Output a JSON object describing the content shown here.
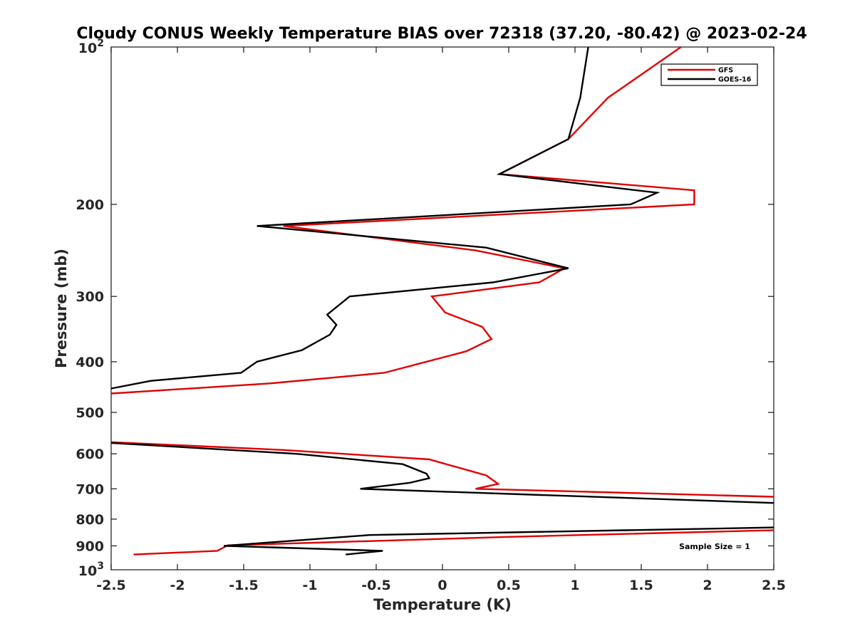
{
  "chart_data": {
    "type": "line",
    "title": "Cloudy CONUS Weekly Temperature BIAS over 72318 (37.20, -80.42) @ 2023-02-24",
    "xlabel": "Temperature (K)",
    "ylabel": "Pressure (mb)",
    "xlim": [
      -2.5,
      2.5
    ],
    "ylim": [
      100,
      1000
    ],
    "y_scale": "log",
    "y_reversed": true,
    "grid": false,
    "legend_position": "top-right",
    "x_ticks": [
      -2.5,
      -2,
      -1.5,
      -1,
      -0.5,
      0,
      0.5,
      1,
      1.5,
      2,
      2.5
    ],
    "x_tick_labels": [
      "-2.5",
      "-2",
      "-1.5",
      "-1",
      "-0.5",
      "0",
      "0.5",
      "1",
      "1.5",
      "2",
      "2.5"
    ],
    "y_ticks": [
      200,
      300,
      400,
      500,
      600,
      700,
      800,
      900
    ],
    "y_tick_labels": [
      "200",
      "300",
      "400",
      "500",
      "600",
      "700",
      "800",
      "900"
    ],
    "y_top_label": {
      "base": "10",
      "exp": "2",
      "value": 100
    },
    "y_bottom_label": {
      "base": "10",
      "exp": "3",
      "value": 1000
    },
    "annotation": "Sample Size = 1",
    "series": [
      {
        "name": "GFS",
        "color": "#e00000",
        "points": [
          [
            1.8,
            100
          ],
          [
            1.25,
            125
          ],
          [
            0.95,
            150
          ],
          [
            0.43,
            175
          ],
          [
            1.9,
            188
          ],
          [
            1.9,
            200
          ],
          [
            -1.2,
            220
          ],
          [
            0.25,
            245
          ],
          [
            0.92,
            265
          ],
          [
            0.73,
            282
          ],
          [
            -0.08,
            300
          ],
          [
            0.02,
            322
          ],
          [
            0.3,
            343
          ],
          [
            0.37,
            362
          ],
          [
            0.18,
            382
          ],
          [
            -0.44,
            420
          ],
          [
            -1.3,
            440
          ],
          [
            -2.5,
            460
          ],
          [
            null,
            510
          ],
          [
            -2.5,
            570
          ],
          [
            -1.2,
            590
          ],
          [
            -0.1,
            615
          ],
          [
            0.33,
            660
          ],
          [
            0.42,
            685
          ],
          [
            0.25,
            700
          ],
          [
            2.5,
            725
          ],
          [
            null,
            780
          ],
          [
            2.5,
            840
          ],
          [
            0.5,
            865
          ],
          [
            -1.62,
            898
          ],
          [
            -1.7,
            920
          ],
          [
            -2.33,
            935
          ]
        ]
      },
      {
        "name": "GOES-16",
        "color": "#000000",
        "points": [
          [
            1.1,
            100
          ],
          [
            1.04,
            125
          ],
          [
            0.95,
            150
          ],
          [
            0.43,
            175
          ],
          [
            1.62,
            190
          ],
          [
            1.42,
            200
          ],
          [
            -1.4,
            220
          ],
          [
            0.33,
            242
          ],
          [
            0.95,
            265
          ],
          [
            0.38,
            282
          ],
          [
            -0.7,
            300
          ],
          [
            -0.87,
            325
          ],
          [
            -0.8,
            340
          ],
          [
            -0.85,
            355
          ],
          [
            -1.06,
            380
          ],
          [
            -1.4,
            400
          ],
          [
            -1.52,
            420
          ],
          [
            -2.2,
            435
          ],
          [
            -2.5,
            450
          ],
          [
            null,
            510
          ],
          [
            -2.5,
            572
          ],
          [
            -1.1,
            600
          ],
          [
            -0.3,
            628
          ],
          [
            -0.12,
            655
          ],
          [
            -0.1,
            668
          ],
          [
            -0.25,
            682
          ],
          [
            -0.62,
            700
          ],
          [
            2.5,
            745
          ],
          [
            null,
            790
          ],
          [
            2.5,
            830
          ],
          [
            -0.55,
            858
          ],
          [
            -1.65,
            900
          ],
          [
            -0.45,
            920
          ],
          [
            -0.73,
            935
          ]
        ]
      }
    ]
  }
}
